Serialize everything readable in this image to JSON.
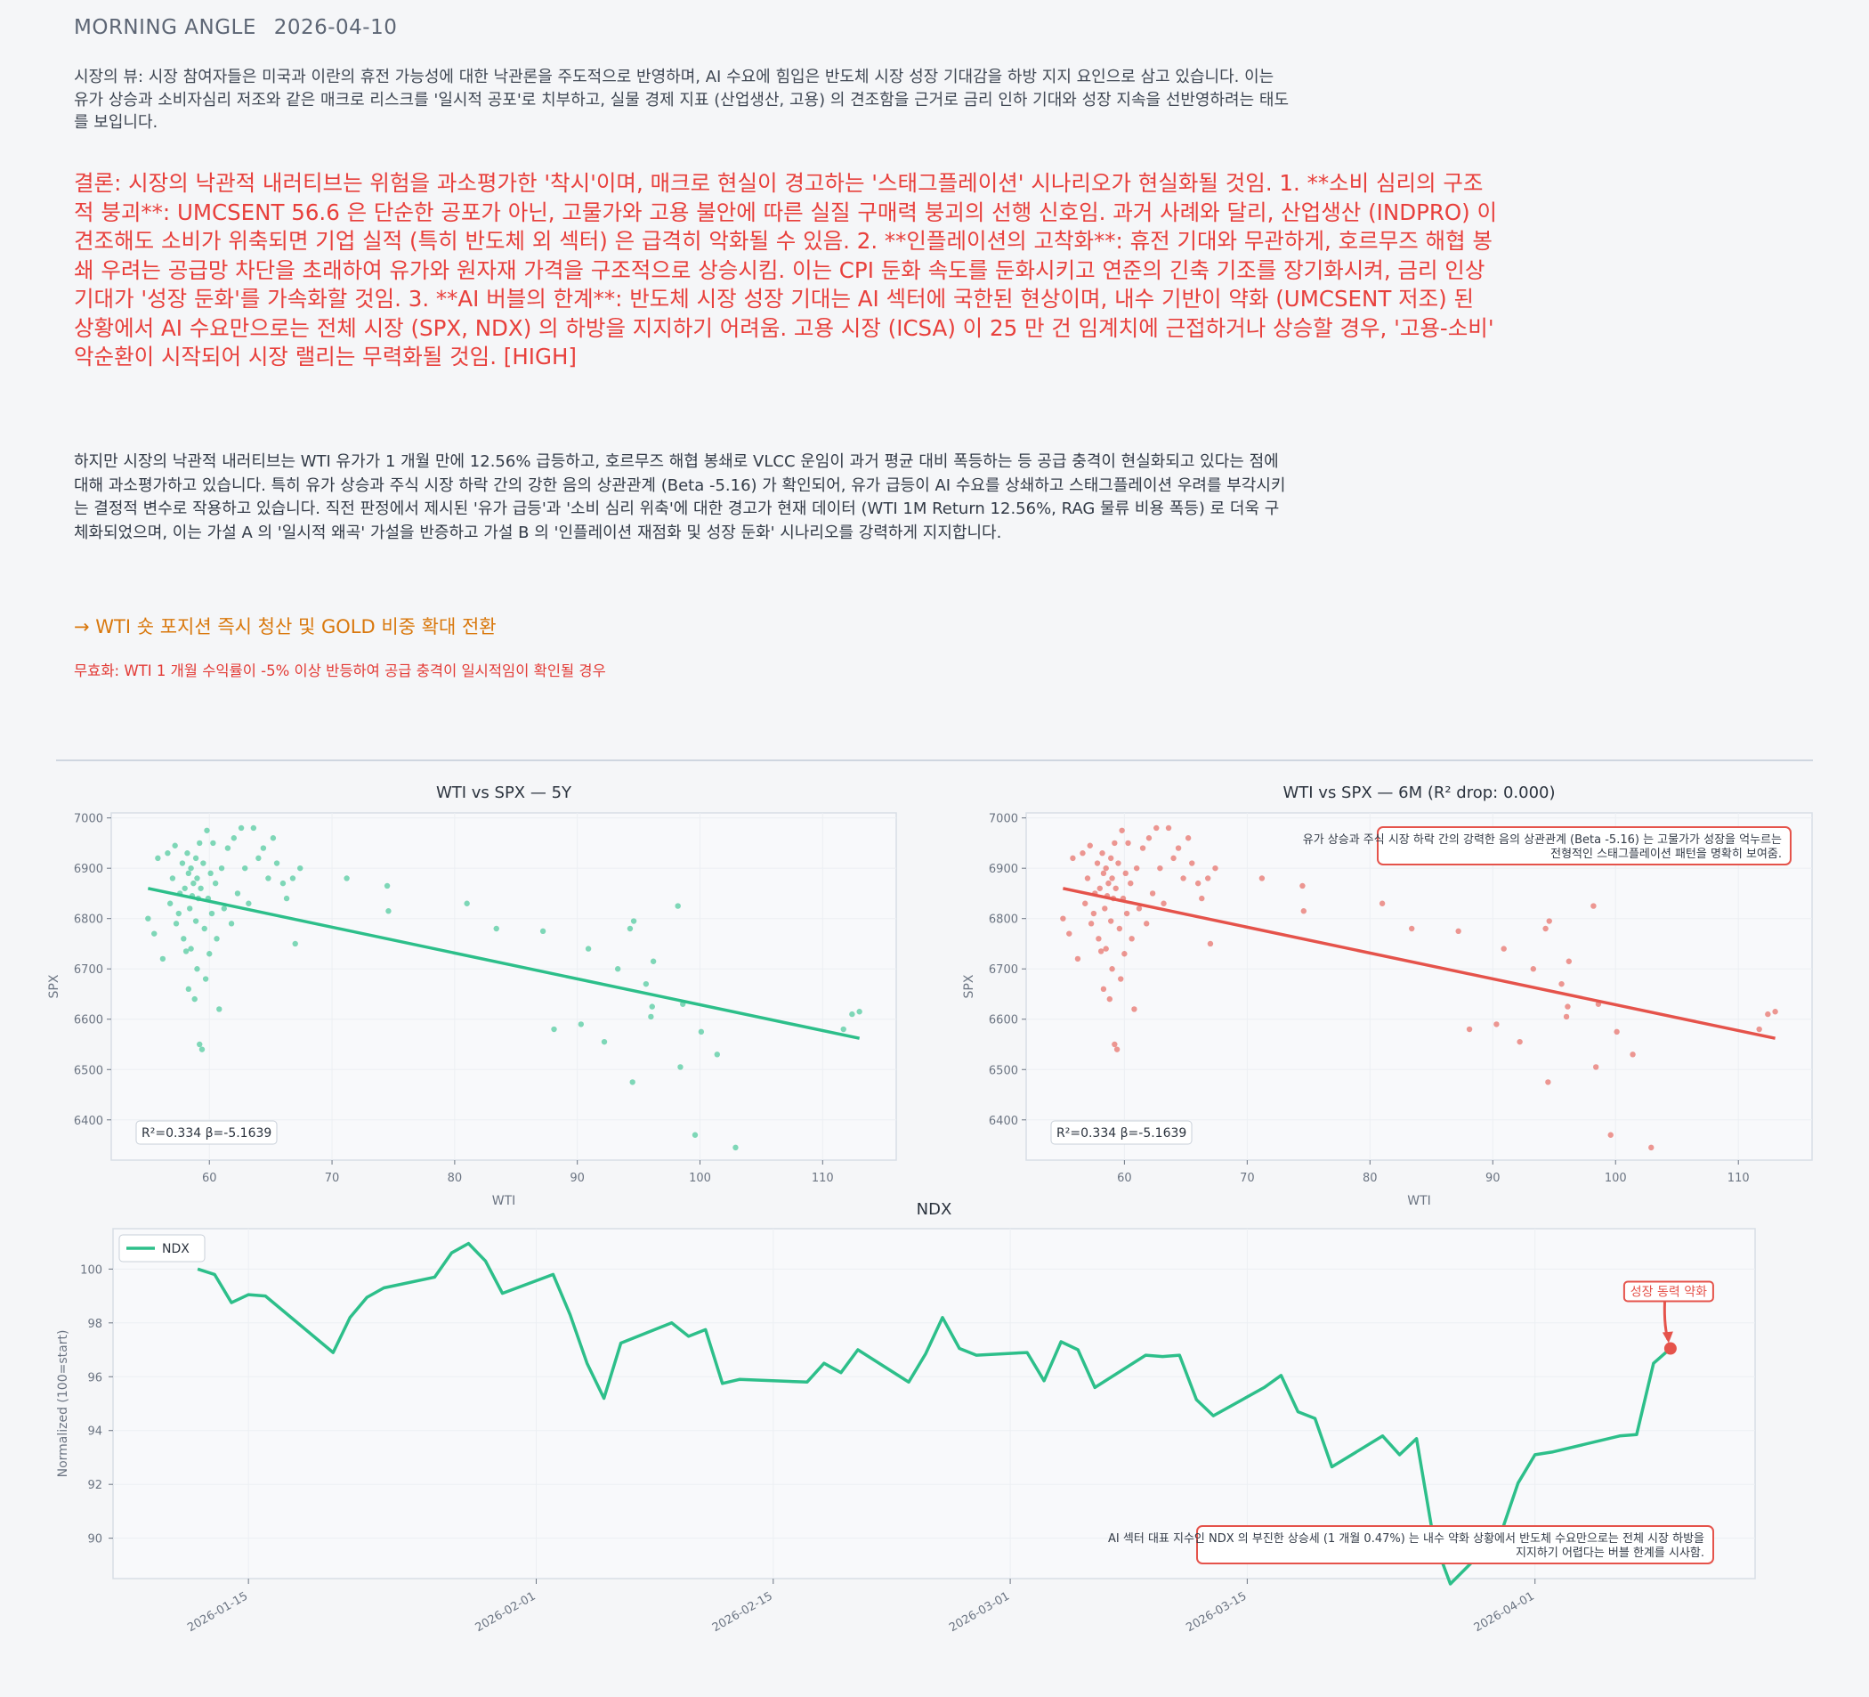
{
  "header": {
    "title": "MORNING ANGLE",
    "date": "2026-04-10"
  },
  "market_view": "시장의 뷰: 시장 참여자들은 미국과 이란의 휴전 가능성에 대한 낙관론을 주도적으로 반영하며, AI 수요에 힘입은 반도체 시장 성장 기대감을 하방 지지 요인으로 삼고 있습니다. 이는 유가 상승과 소비자심리 저조와 같은 매크로 리스크를 '일시적 공포'로 치부하고, 실물 경제 지표 (산업생산, 고용) 의 견조함을 근거로 금리 인하 기대와 성장 지속을 선반영하려는 태도를 보입니다.",
  "conclusion": "결론: 시장의 낙관적 내러티브는 위험을 과소평가한 '착시'이며, 매크로 현실이 경고하는 '스태그플레이션' 시나리오가 현실화될 것임.   1. **소비 심리의 구조적 붕괴**: UMCSENT 56.6 은 단순한 공포가 아닌, 고물가와 고용 불안에 따른 실질 구매력 붕괴의 선행 신호임. 과거 사례와 달리, 산업생산 (INDPRO) 이 견조해도 소비가 위축되면 기업 실적 (특히 반도체 외 섹터) 은 급격히 악화될 수 있음.  2. **인플레이션의 고착화**: 휴전 기대와 무관하게, 호르무즈 해협 봉쇄 우려는 공급망 차단을 초래하여 유가와 원자재 가격을 구조적으로 상승시킴. 이는 CPI 둔화 속도를 둔화시키고 연준의 긴축 기조를 장기화시켜, 금리 인상 기대가 '성장 둔화'를 가속화할 것임.  3. **AI 버블의 한계**: 반도체 시장 성장 기대는 AI 섹터에 국한된 현상이며, 내수 기반이 약화 (UMCSENT 저조) 된 상황에서 AI 수요만으로는 전체 시장 (SPX, NDX) 의 하방을 지지하기 어려움. 고용 시장 (ICSA) 이 25 만 건 임계치에 근접하거나 상승할 경우, '고용-소비' 악순환이 시작되어 시장 랠리는 무력화될 것임.  [HIGH]",
  "detail": "하지만 시장의 낙관적 내러티브는 WTI 유가가 1 개월 만에 12.56% 급등하고, 호르무즈 해협 봉쇄로 VLCC 운임이 과거 평균 대비 폭등하는 등 공급 충격이 현실화되고 있다는 점에 대해 과소평가하고 있습니다. 특히 유가 상승과 주식 시장 하락 간의 강한 음의 상관관계 (Beta -5.16) 가 확인되어, 유가 급등이 AI 수요를 상쇄하고 스태그플레이션 우려를 부각시키는 결정적 변수로 작용하고 있습니다. 직전 판정에서 제시된 '유가 급등'과 '소비 심리 위축'에 대한 경고가 현재 데이터 (WTI 1M Return 12.56%, RAG 물류 비용 폭등) 로 더욱 구체화되었으며, 이는 가설 A 의 '일시적 왜곡' 가설을 반증하고 가설 B 의 '인플레이션 재점화 및 성장 둔화' 시나리오를 강력하게 지지합니다.",
  "action": "→ WTI 숏 포지션 즉시 청산 및 GOLD 비중 확대 전환",
  "invalidation": "무효화: WTI 1 개월 수익률이 -5% 이상 반등하여 공급 충격이 일시적임이 확인될 경우",
  "colors": {
    "green": "#2dbf8a",
    "red": "#e5534b",
    "orange": "#d9780d",
    "conclusion": "#e8403c"
  },
  "chart_data": [
    {
      "type": "scatter",
      "title": "WTI vs SPX — 5Y",
      "xlabel": "WTI",
      "ylabel": "SPX",
      "xlim": [
        52,
        116
      ],
      "ylim": [
        6320,
        7010
      ],
      "xticks": [
        60,
        70,
        80,
        90,
        100,
        110
      ],
      "yticks": [
        6400,
        6500,
        6600,
        6700,
        6800,
        6900,
        7000
      ],
      "color": "#2dbf8a",
      "fit": {
        "x": [
          55,
          113
        ],
        "y": [
          6860,
          6562
        ]
      },
      "stats": "R²=0.334  β=-5.1639",
      "points": [
        [
          55.0,
          6800
        ],
        [
          55.5,
          6770
        ],
        [
          55.8,
          6920
        ],
        [
          56.2,
          6720
        ],
        [
          56.6,
          6930
        ],
        [
          56.8,
          6830
        ],
        [
          57.0,
          6880
        ],
        [
          57.2,
          6945
        ],
        [
          57.3,
          6790
        ],
        [
          57.5,
          6810
        ],
        [
          57.6,
          6850
        ],
        [
          57.8,
          6910
        ],
        [
          57.9,
          6760
        ],
        [
          58.0,
          6860
        ],
        [
          58.1,
          6735
        ],
        [
          58.2,
          6930
        ],
        [
          58.3,
          6890
        ],
        [
          58.3,
          6660
        ],
        [
          58.4,
          6820
        ],
        [
          58.5,
          6900
        ],
        [
          58.5,
          6740
        ],
        [
          58.6,
          6845
        ],
        [
          58.7,
          6870
        ],
        [
          58.8,
          6640
        ],
        [
          58.9,
          6920
        ],
        [
          58.9,
          6795
        ],
        [
          59.0,
          6880
        ],
        [
          59.0,
          6700
        ],
        [
          59.1,
          6840
        ],
        [
          59.2,
          6950
        ],
        [
          59.2,
          6550
        ],
        [
          59.3,
          6860
        ],
        [
          59.4,
          6540
        ],
        [
          59.5,
          6910
        ],
        [
          59.6,
          6780
        ],
        [
          59.7,
          6680
        ],
        [
          59.8,
          6975
        ],
        [
          59.9,
          6840
        ],
        [
          60.0,
          6730
        ],
        [
          60.1,
          6890
        ],
        [
          60.2,
          6810
        ],
        [
          60.3,
          6950
        ],
        [
          60.5,
          6870
        ],
        [
          60.6,
          6760
        ],
        [
          60.8,
          6620
        ],
        [
          61.0,
          6900
        ],
        [
          61.2,
          6820
        ],
        [
          61.5,
          6940
        ],
        [
          61.8,
          6790
        ],
        [
          62.0,
          6960
        ],
        [
          62.3,
          6850
        ],
        [
          62.6,
          6980
        ],
        [
          62.9,
          6900
        ],
        [
          63.2,
          6830
        ],
        [
          63.6,
          6980
        ],
        [
          64.0,
          6920
        ],
        [
          64.4,
          6940
        ],
        [
          64.8,
          6880
        ],
        [
          65.2,
          6960
        ],
        [
          65.5,
          6910
        ],
        [
          66.0,
          6870
        ],
        [
          66.3,
          6840
        ],
        [
          66.8,
          6880
        ],
        [
          67.0,
          6750
        ],
        [
          67.4,
          6900
        ],
        [
          71.2,
          6880
        ],
        [
          74.5,
          6865
        ],
        [
          74.6,
          6815
        ],
        [
          81.0,
          6830
        ],
        [
          83.4,
          6780
        ],
        [
          87.2,
          6775
        ],
        [
          88.1,
          6580
        ],
        [
          90.3,
          6590
        ],
        [
          90.9,
          6740
        ],
        [
          92.2,
          6555
        ],
        [
          93.3,
          6700
        ],
        [
          94.3,
          6780
        ],
        [
          94.5,
          6475
        ],
        [
          94.6,
          6795
        ],
        [
          95.6,
          6670
        ],
        [
          96.0,
          6605
        ],
        [
          96.1,
          6625
        ],
        [
          96.2,
          6715
        ],
        [
          98.2,
          6825
        ],
        [
          98.4,
          6505
        ],
        [
          98.6,
          6630
        ],
        [
          99.6,
          6370
        ],
        [
          100.1,
          6575
        ],
        [
          101.4,
          6530
        ],
        [
          102.9,
          6345
        ],
        [
          111.7,
          6580
        ],
        [
          112.4,
          6610
        ],
        [
          113.0,
          6615
        ]
      ]
    },
    {
      "type": "scatter",
      "title": "WTI vs SPX — 6M (R² drop: 0.000)",
      "xlabel": "WTI",
      "ylabel": "SPX",
      "xlim": [
        52,
        116
      ],
      "ylim": [
        6320,
        7010
      ],
      "xticks": [
        60,
        70,
        80,
        90,
        100,
        110
      ],
      "yticks": [
        6400,
        6500,
        6600,
        6700,
        6800,
        6900,
        7000
      ],
      "color": "#e5534b",
      "fit": {
        "x": [
          55,
          113
        ],
        "y": [
          6860,
          6562
        ]
      },
      "stats": "R²=0.334  β=-5.1639",
      "annotation": "유가 상승과 주식 시장 하락 간의 강력한 음의 상관관계 (Beta -5.16) 는 고물가가 성장을 억누르는 전형적인 스태그플레이션 패턴을 명확히 보여줌.",
      "points": [
        [
          55.0,
          6800
        ],
        [
          55.5,
          6770
        ],
        [
          55.8,
          6920
        ],
        [
          56.2,
          6720
        ],
        [
          56.6,
          6930
        ],
        [
          56.8,
          6830
        ],
        [
          57.0,
          6880
        ],
        [
          57.2,
          6945
        ],
        [
          57.3,
          6790
        ],
        [
          57.5,
          6810
        ],
        [
          57.6,
          6850
        ],
        [
          57.8,
          6910
        ],
        [
          57.9,
          6760
        ],
        [
          58.0,
          6860
        ],
        [
          58.1,
          6735
        ],
        [
          58.2,
          6930
        ],
        [
          58.3,
          6890
        ],
        [
          58.3,
          6660
        ],
        [
          58.4,
          6820
        ],
        [
          58.5,
          6900
        ],
        [
          58.5,
          6740
        ],
        [
          58.6,
          6845
        ],
        [
          58.7,
          6870
        ],
        [
          58.8,
          6640
        ],
        [
          58.9,
          6920
        ],
        [
          58.9,
          6795
        ],
        [
          59.0,
          6880
        ],
        [
          59.0,
          6700
        ],
        [
          59.1,
          6840
        ],
        [
          59.2,
          6950
        ],
        [
          59.2,
          6550
        ],
        [
          59.3,
          6860
        ],
        [
          59.4,
          6540
        ],
        [
          59.5,
          6910
        ],
        [
          59.6,
          6780
        ],
        [
          59.7,
          6680
        ],
        [
          59.8,
          6975
        ],
        [
          59.9,
          6840
        ],
        [
          60.0,
          6730
        ],
        [
          60.1,
          6890
        ],
        [
          60.2,
          6810
        ],
        [
          60.3,
          6950
        ],
        [
          60.5,
          6870
        ],
        [
          60.6,
          6760
        ],
        [
          60.8,
          6620
        ],
        [
          61.0,
          6900
        ],
        [
          61.2,
          6820
        ],
        [
          61.5,
          6940
        ],
        [
          61.8,
          6790
        ],
        [
          62.0,
          6960
        ],
        [
          62.3,
          6850
        ],
        [
          62.6,
          6980
        ],
        [
          62.9,
          6900
        ],
        [
          63.2,
          6830
        ],
        [
          63.6,
          6980
        ],
        [
          64.0,
          6920
        ],
        [
          64.4,
          6940
        ],
        [
          64.8,
          6880
        ],
        [
          65.2,
          6960
        ],
        [
          65.5,
          6910
        ],
        [
          66.0,
          6870
        ],
        [
          66.3,
          6840
        ],
        [
          66.8,
          6880
        ],
        [
          67.0,
          6750
        ],
        [
          67.4,
          6900
        ],
        [
          71.2,
          6880
        ],
        [
          74.5,
          6865
        ],
        [
          74.6,
          6815
        ],
        [
          81.0,
          6830
        ],
        [
          83.4,
          6780
        ],
        [
          87.2,
          6775
        ],
        [
          88.1,
          6580
        ],
        [
          90.3,
          6590
        ],
        [
          90.9,
          6740
        ],
        [
          92.2,
          6555
        ],
        [
          93.3,
          6700
        ],
        [
          94.3,
          6780
        ],
        [
          94.5,
          6475
        ],
        [
          94.6,
          6795
        ],
        [
          95.6,
          6670
        ],
        [
          96.0,
          6605
        ],
        [
          96.1,
          6625
        ],
        [
          96.2,
          6715
        ],
        [
          98.2,
          6825
        ],
        [
          98.4,
          6505
        ],
        [
          98.6,
          6630
        ],
        [
          99.6,
          6370
        ],
        [
          100.1,
          6575
        ],
        [
          101.4,
          6530
        ],
        [
          102.9,
          6345
        ],
        [
          111.7,
          6580
        ],
        [
          112.4,
          6610
        ],
        [
          113.0,
          6615
        ]
      ]
    },
    {
      "type": "line",
      "title": "NDX",
      "xlabel": "",
      "ylabel": "Normalized (100=start)",
      "ylim": [
        88.5,
        101.5
      ],
      "yticks": [
        90,
        92,
        94,
        96,
        98,
        100
      ],
      "xlim": [
        "2026-01-07",
        "2026-04-14"
      ],
      "xticks": [
        "2026-01-15",
        "2026-02-01",
        "2026-02-15",
        "2026-03-01",
        "2026-03-15",
        "2026-04-01"
      ],
      "legend": "top-left",
      "series": [
        {
          "name": "NDX",
          "color": "#2dbf8a",
          "x": [
            "2026-01-12",
            "2026-01-13",
            "2026-01-14",
            "2026-01-15",
            "2026-01-16",
            "2026-01-20",
            "2026-01-21",
            "2026-01-22",
            "2026-01-23",
            "2026-01-26",
            "2026-01-27",
            "2026-01-28",
            "2026-01-29",
            "2026-01-30",
            "2026-02-02",
            "2026-02-03",
            "2026-02-04",
            "2026-02-05",
            "2026-02-06",
            "2026-02-09",
            "2026-02-10",
            "2026-02-11",
            "2026-02-12",
            "2026-02-13",
            "2026-02-17",
            "2026-02-18",
            "2026-02-19",
            "2026-02-20",
            "2026-02-23",
            "2026-02-24",
            "2026-02-25",
            "2026-02-26",
            "2026-02-27",
            "2026-03-02",
            "2026-03-03",
            "2026-03-04",
            "2026-03-05",
            "2026-03-06",
            "2026-03-09",
            "2026-03-10",
            "2026-03-11",
            "2026-03-12",
            "2026-03-13",
            "2026-03-16",
            "2026-03-17",
            "2026-03-18",
            "2026-03-19",
            "2026-03-20",
            "2026-03-23",
            "2026-03-24",
            "2026-03-25",
            "2026-03-26",
            "2026-03-27",
            "2026-03-30",
            "2026-03-31",
            "2026-04-01",
            "2026-04-02",
            "2026-04-06",
            "2026-04-07",
            "2026-04-08",
            "2026-04-09"
          ],
          "values": [
            100.0,
            99.8,
            98.75,
            99.05,
            99.0,
            96.9,
            98.2,
            98.95,
            99.3,
            99.7,
            100.6,
            100.95,
            100.3,
            99.1,
            99.8,
            98.3,
            96.5,
            95.2,
            97.25,
            98.0,
            97.5,
            97.75,
            95.75,
            95.9,
            95.8,
            96.5,
            96.15,
            97.0,
            95.8,
            96.85,
            98.2,
            97.05,
            96.8,
            96.9,
            95.85,
            97.3,
            97.0,
            95.6,
            96.8,
            96.75,
            96.8,
            95.15,
            94.55,
            95.6,
            96.05,
            94.7,
            94.45,
            92.65,
            93.8,
            93.1,
            93.7,
            90.0,
            88.3,
            90.2,
            92.05,
            93.1,
            93.2,
            93.8,
            93.85,
            96.5,
            97.05
          ]
        }
      ],
      "highlight": {
        "label": "성장 동력 약화",
        "x": "2026-04-09",
        "y": 97.05,
        "color": "#e5534b"
      },
      "annotation": "AI 섹터 대표 지수인 NDX 의 부진한 상승세 (1 개월 0.47%) 는 내수 약화 상황에서 반도체 수요만으로는 전체 시장 하방을 지지하기 어렵다는 버블 한계를 시사함."
    }
  ]
}
